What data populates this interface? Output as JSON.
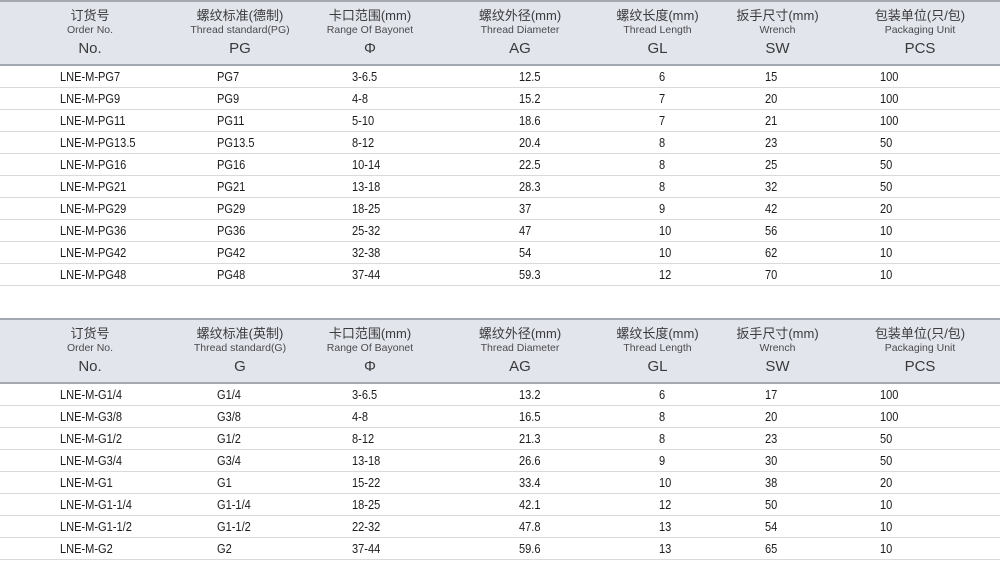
{
  "colors": {
    "header_bg": "#e2e5ec",
    "header_border": "#a3a8b0",
    "row_separator": "#d9dadd",
    "text": "#1c1c1e"
  },
  "tables": [
    {
      "id": "pg-metric-german",
      "columns": [
        {
          "key": "order-no",
          "zh": "订货号",
          "en": "Order No.",
          "code": "No."
        },
        {
          "key": "thread-standard",
          "zh": "螺纹标准(德制)",
          "en": "Thread standard(PG)",
          "code": "PG"
        },
        {
          "key": "bayonet-range",
          "zh": "卡口范围(mm)",
          "en": "Range Of Bayonet",
          "code": "Φ"
        },
        {
          "key": "thread-diameter",
          "zh": "螺纹外径(mm)",
          "en": "Thread Diameter",
          "code": "AG"
        },
        {
          "key": "thread-length",
          "zh": "螺纹长度(mm)",
          "en": "Thread Length",
          "code": "GL"
        },
        {
          "key": "wrench-size",
          "zh": "扳手尺寸(mm)",
          "en": "Wrench",
          "code": "SW"
        },
        {
          "key": "packaging-unit",
          "zh": "包装单位(只/包)",
          "en": "Packaging Unit",
          "code": "PCS"
        }
      ],
      "rows": [
        [
          "LNE-M-PG7",
          "PG7",
          "3-6.5",
          "12.5",
          "6",
          "15",
          "100"
        ],
        [
          "LNE-M-PG9",
          "PG9",
          "4-8",
          "15.2",
          "7",
          "20",
          "100"
        ],
        [
          "LNE-M-PG11",
          "PG11",
          "5-10",
          "18.6",
          "7",
          "21",
          "100"
        ],
        [
          "LNE-M-PG13.5",
          "PG13.5",
          "8-12",
          "20.4",
          "8",
          "23",
          "50"
        ],
        [
          "LNE-M-PG16",
          "PG16",
          "10-14",
          "22.5",
          "8",
          "25",
          "50"
        ],
        [
          "LNE-M-PG21",
          "PG21",
          "13-18",
          "28.3",
          "8",
          "32",
          "50"
        ],
        [
          "LNE-M-PG29",
          "PG29",
          "18-25",
          "37",
          "9",
          "42",
          "20"
        ],
        [
          "LNE-M-PG36",
          "PG36",
          "25-32",
          "47",
          "10",
          "56",
          "10"
        ],
        [
          "LNE-M-PG42",
          "PG42",
          "32-38",
          "54",
          "10",
          "62",
          "10"
        ],
        [
          "LNE-M-PG48",
          "PG48",
          "37-44",
          "59.3",
          "12",
          "70",
          "10"
        ]
      ]
    },
    {
      "id": "g-imperial-english",
      "columns": [
        {
          "key": "order-no",
          "zh": "订货号",
          "en": "Order No.",
          "code": "No."
        },
        {
          "key": "thread-standard",
          "zh": "螺纹标准(英制)",
          "en": "Thread standard(G)",
          "code": "G"
        },
        {
          "key": "bayonet-range",
          "zh": "卡口范围(mm)",
          "en": "Range Of Bayonet",
          "code": "Φ"
        },
        {
          "key": "thread-diameter",
          "zh": "螺纹外径(mm)",
          "en": "Thread Diameter",
          "code": "AG"
        },
        {
          "key": "thread-length",
          "zh": "螺纹长度(mm)",
          "en": "Thread Length",
          "code": "GL"
        },
        {
          "key": "wrench-size",
          "zh": "扳手尺寸(mm)",
          "en": "Wrench",
          "code": "SW"
        },
        {
          "key": "packaging-unit",
          "zh": "包装单位(只/包)",
          "en": "Packaging Unit",
          "code": "PCS"
        }
      ],
      "rows": [
        [
          "LNE-M-G1/4",
          "G1/4",
          "3-6.5",
          "13.2",
          "6",
          "17",
          "100"
        ],
        [
          "LNE-M-G3/8",
          "G3/8",
          "4-8",
          "16.5",
          "8",
          "20",
          "100"
        ],
        [
          "LNE-M-G1/2",
          "G1/2",
          "8-12",
          "21.3",
          "8",
          "23",
          "50"
        ],
        [
          "LNE-M-G3/4",
          "G3/4",
          "13-18",
          "26.6",
          "9",
          "30",
          "50"
        ],
        [
          "LNE-M-G1",
          "G1",
          "15-22",
          "33.4",
          "10",
          "38",
          "20"
        ],
        [
          "LNE-M-G1-1/4",
          "G1-1/4",
          "18-25",
          "42.1",
          "12",
          "50",
          "10"
        ],
        [
          "LNE-M-G1-1/2",
          "G1-1/2",
          "22-32",
          "47.8",
          "13",
          "54",
          "10"
        ],
        [
          "LNE-M-G2",
          "G2",
          "37-44",
          "59.6",
          "13",
          "65",
          "10"
        ]
      ]
    }
  ]
}
